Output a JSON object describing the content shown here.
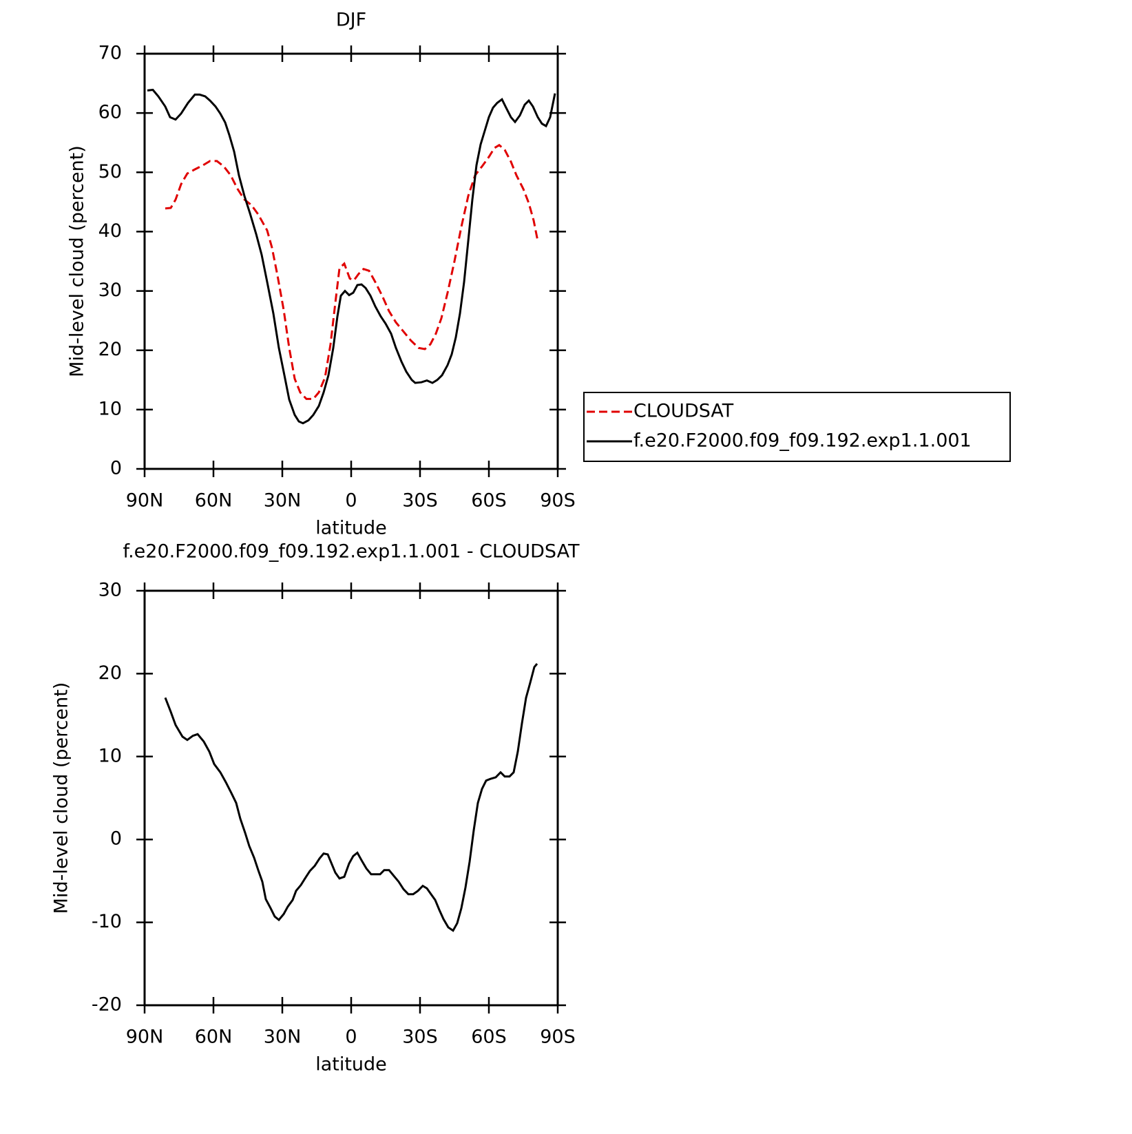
{
  "chart_data": [
    {
      "type": "line",
      "title": "DJF",
      "xlabel": "latitude",
      "ylabel": "Mid-level cloud (percent)",
      "xlim": [
        90,
        -90
      ],
      "ylim": [
        0,
        70
      ],
      "xticks": [
        {
          "value": 90,
          "label": "90N"
        },
        {
          "value": 60,
          "label": "60N"
        },
        {
          "value": 30,
          "label": "30N"
        },
        0,
        {
          "value": -30,
          "label": "30S"
        },
        {
          "value": -60,
          "label": "60S"
        },
        {
          "value": -90,
          "label": "90S"
        }
      ],
      "yticks": [
        0,
        10,
        20,
        30,
        40,
        50,
        60,
        70
      ],
      "legend": "right",
      "series": [
        {
          "name": "CLOUDSAT",
          "color": "#e00000",
          "dash": "dashed",
          "x": [
            81,
            78.6,
            76.5,
            74.1,
            71.4,
            68.1,
            64.5,
            61.5,
            58.5,
            55.5,
            52.5,
            49.5,
            46.5,
            43.5,
            40.5,
            36.6,
            34.5,
            32.1,
            29.4,
            27,
            24.6,
            22.2,
            19.5,
            16.5,
            14.1,
            11.4,
            9,
            6.9,
            5.1,
            3,
            0.6,
            -1.2,
            -3.3,
            -5.4,
            -7.8,
            -10.5,
            -13.5,
            -16.5,
            -19.5,
            -22.5,
            -26.1,
            -29.4,
            -32.1,
            -34.5,
            -36.9,
            -39.3,
            -42,
            -45,
            -48,
            -51,
            -54,
            -57,
            -60,
            -62.4,
            -64.5,
            -66.9,
            -69.6,
            -72,
            -75,
            -77.4,
            -79.5,
            -81.3
          ],
          "values": [
            43.9,
            44.0,
            45.4,
            48.0,
            49.8,
            50.5,
            51.2,
            51.9,
            51.9,
            51.0,
            49.5,
            47.2,
            45.4,
            44.5,
            42.9,
            40.2,
            37.3,
            32.6,
            26.8,
            20.4,
            15.2,
            12.9,
            11.8,
            11.8,
            12.9,
            15.4,
            21.0,
            28.0,
            33.8,
            34.6,
            32.1,
            31.8,
            32.9,
            33.7,
            33.4,
            31.5,
            29.2,
            26.6,
            24.7,
            23.3,
            21.6,
            20.4,
            20.2,
            21.0,
            22.8,
            25.4,
            29.7,
            35.0,
            40.8,
            46.0,
            49.5,
            51.0,
            52.6,
            54.1,
            54.6,
            53.8,
            51.8,
            49.5,
            47.2,
            44.8,
            41.9,
            38.4
          ]
        },
        {
          "name": "f.e20.F2000.f09_f09.192.exp1.1.001",
          "color": "#000000",
          "dash": "solid",
          "x": [
            88.8,
            86.4,
            84,
            81,
            78.9,
            76.5,
            74.1,
            71.1,
            68.1,
            66,
            63.6,
            61.5,
            59.1,
            57,
            54.9,
            53.1,
            51,
            48.9,
            46.5,
            44.1,
            41.4,
            39,
            36.6,
            33.9,
            31.5,
            29.1,
            27,
            24.6,
            22.8,
            21,
            18.6,
            16.5,
            14.1,
            12,
            9.9,
            7.8,
            6,
            4.5,
            2.7,
            0.9,
            -0.9,
            -2.7,
            -4.5,
            -6.3,
            -8.4,
            -10.5,
            -12.9,
            -15,
            -17.4,
            -19.5,
            -21.9,
            -24,
            -26.4,
            -27.9,
            -30.6,
            -33,
            -35.4,
            -37.5,
            -39.6,
            -42,
            -43.8,
            -45.6,
            -47.4,
            -49.2,
            -51,
            -52.8,
            -54.6,
            -56.4,
            -58.2,
            -60,
            -61.8,
            -63.6,
            -65.7,
            -67.5,
            -69.6,
            -71.4,
            -73.5,
            -75.6,
            -77.4,
            -79.2,
            -81.3,
            -83.1,
            -84.9,
            -86.7,
            -88.8
          ],
          "values": [
            63.8,
            63.9,
            62.8,
            61.1,
            59.3,
            58.9,
            59.9,
            61.7,
            63.1,
            63.1,
            62.8,
            62.1,
            61.1,
            59.9,
            58.4,
            56.3,
            53.5,
            49.5,
            46.0,
            43.1,
            39.6,
            36.1,
            31.5,
            26.2,
            20.4,
            15.8,
            11.7,
            9.1,
            8.0,
            7.7,
            8.2,
            9.1,
            10.6,
            12.9,
            15.8,
            20.4,
            25.7,
            29.2,
            30.0,
            29.3,
            29.7,
            31.0,
            31.1,
            30.5,
            29.2,
            27.4,
            25.7,
            24.5,
            22.8,
            20.4,
            18.1,
            16.4,
            15.0,
            14.5,
            14.6,
            14.9,
            14.5,
            15.0,
            15.8,
            17.5,
            19.3,
            22.2,
            26.2,
            31.5,
            38.4,
            45.4,
            51.2,
            54.7,
            57.0,
            59.3,
            60.9,
            61.7,
            62.3,
            60.9,
            59.3,
            58.5,
            59.6,
            61.4,
            62.1,
            61.1,
            59.3,
            58.2,
            57.8,
            59.3,
            63.3
          ]
        }
      ]
    },
    {
      "type": "line",
      "title": "f.e20.F2000.f09_f09.192.exp1.1.001 - CLOUDSAT",
      "xlabel": "latitude",
      "ylabel": "Mid-level cloud (percent)",
      "xlim": [
        90,
        -90
      ],
      "ylim": [
        -20,
        30
      ],
      "xticks": [
        {
          "value": 90,
          "label": "90N"
        },
        {
          "value": 60,
          "label": "60N"
        },
        {
          "value": 30,
          "label": "30N"
        },
        0,
        {
          "value": -30,
          "label": "30S"
        },
        {
          "value": -60,
          "label": "60S"
        },
        {
          "value": -90,
          "label": "90S"
        }
      ],
      "yticks": [
        -20,
        -10,
        0,
        10,
        20,
        30
      ],
      "series": [
        {
          "color": "#000000",
          "dash": "solid",
          "x": [
            81,
            78.6,
            76.5,
            73.5,
            71.4,
            69,
            66.9,
            64.2,
            61.8,
            59.7,
            57,
            54.6,
            52.2,
            50.1,
            48.3,
            46.2,
            44.4,
            42.3,
            40.5,
            38.7,
            37.2,
            35.1,
            33.3,
            31.5,
            29.4,
            27.6,
            25.5,
            24,
            21.9,
            20.1,
            18,
            15.9,
            13.8,
            12,
            10.2,
            8.7,
            6.9,
            5.1,
            3,
            0.9,
            -0.9,
            -2.7,
            -4.5,
            -6.6,
            -8.7,
            -10.8,
            -12.6,
            -14.4,
            -16.5,
            -18.6,
            -20.7,
            -22.8,
            -24.9,
            -27,
            -29.1,
            -31.2,
            -33,
            -34.8,
            -36.6,
            -38.4,
            -40.2,
            -42.3,
            -44.4,
            -46.2,
            -48,
            -49.8,
            -51.6,
            -53.4,
            -55.2,
            -57,
            -58.8,
            -60.6,
            -63,
            -65.1,
            -66.9,
            -69,
            -70.8,
            -72.6,
            -74.4,
            -76.2,
            -78,
            -79.8,
            -81
          ],
          "values": [
            17.1,
            15.4,
            13.8,
            12.4,
            12.0,
            12.5,
            12.7,
            11.8,
            10.6,
            9.1,
            8.1,
            6.9,
            5.6,
            4.4,
            2.5,
            0.8,
            -0.8,
            -2.2,
            -3.7,
            -5.1,
            -7.2,
            -8.3,
            -9.3,
            -9.7,
            -9.0,
            -8.1,
            -7.3,
            -6.2,
            -5.5,
            -4.7,
            -3.8,
            -3.2,
            -2.3,
            -1.7,
            -1.8,
            -2.8,
            -4.0,
            -4.7,
            -4.5,
            -2.9,
            -2.0,
            -1.6,
            -2.5,
            -3.5,
            -4.2,
            -4.2,
            -4.2,
            -3.7,
            -3.7,
            -4.4,
            -5.1,
            -6.0,
            -6.6,
            -6.6,
            -6.2,
            -5.6,
            -5.9,
            -6.6,
            -7.3,
            -8.5,
            -9.6,
            -10.6,
            -11.0,
            -10.1,
            -8.3,
            -5.8,
            -2.7,
            1.1,
            4.4,
            6.1,
            7.1,
            7.3,
            7.5,
            8.1,
            7.6,
            7.6,
            8.1,
            10.6,
            14.0,
            17.1,
            18.9,
            20.8,
            21.2
          ]
        }
      ]
    }
  ]
}
